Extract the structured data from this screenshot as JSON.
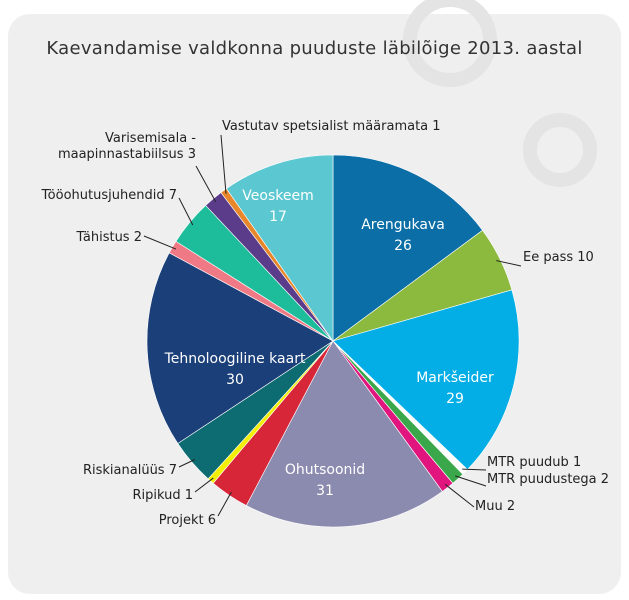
{
  "chart_data": {
    "type": "pie",
    "title": "Kaevandamise valdkonna puuduste läbilõige 2013. aastal",
    "categories": [
      "Arengukava",
      "Ee pass",
      "Markšeider",
      "MTR puudub",
      "MTR puudustega",
      "Muu",
      "Ohutsoonid",
      "Projekt",
      "Ripikud",
      "Riskianalüüs",
      "Tehnoloogiline kaart",
      "Tähistus",
      "Tööohutusjuhendid",
      "Varisemisala - maapinnastabiilsus",
      "Vastutav spetsialist määramata",
      "Veoskeem"
    ],
    "values": [
      26,
      10,
      29,
      1,
      2,
      2,
      31,
      6,
      1,
      7,
      30,
      2,
      7,
      3,
      1,
      17
    ],
    "colors": [
      "#0b6ea6",
      "#8bba3e",
      "#03aee6",
      "#ffffff",
      "#3aa84a",
      "#e0167e",
      "#8b8aaf",
      "#d82639",
      "#f2ee05",
      "#0d6c72",
      "#1b3f79",
      "#f07986",
      "#1dbc9b",
      "#5b3c8b",
      "#e8862a",
      "#5bc7d1"
    ]
  }
}
